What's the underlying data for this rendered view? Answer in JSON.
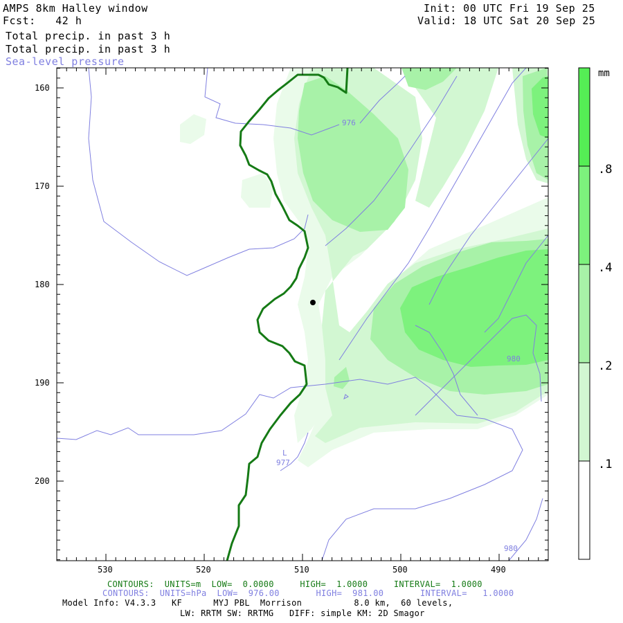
{
  "header": {
    "title": "AMPS 8km Halley window",
    "fcst": "Fcst:   42 h",
    "init": "Init: 00 UTC Fri 19 Sep 25",
    "valid": "Valid: 18 UTC Sat 20 Sep 25",
    "field1": "Total precip. in past 3 h",
    "field2": "Total precip. in past 3 h",
    "field3": "Sea-level pressure"
  },
  "axes": {
    "y_ticks": [
      "160",
      "170",
      "180",
      "190",
      "200"
    ],
    "x_ticks": [
      "530",
      "520",
      "510",
      "500",
      "490"
    ]
  },
  "colorbar": {
    "unit": "mm",
    "labels": [
      ".8",
      ".4",
      ".2",
      ".1"
    ],
    "colors": [
      "#ffffff",
      "#eafbea",
      "#d2f7d2",
      "#a8f2a8",
      "#7df27d",
      "#55ee55"
    ]
  },
  "contour_labels": {
    "p976": "976",
    "p980a": "980",
    "p980b": "980",
    "p977": "977",
    "low": "L"
  },
  "footer": {
    "line1": "CONTOURS:  UNITS=m  LOW=  0.0000     HIGH=  1.0000     INTERVAL=  1.0000",
    "line2": "CONTOURS:  UNITS=hPa  LOW=  976.00       HIGH=  981.00       INTERVAL=   1.0000",
    "line3": "Model Info: V4.3.3   KF      MYJ PBL  Morrison          8.0 km,  60 levels,",
    "line4": "LW: RRTM SW: RRTMG   DIFF: simple KM: 2D Smagor"
  }
}
